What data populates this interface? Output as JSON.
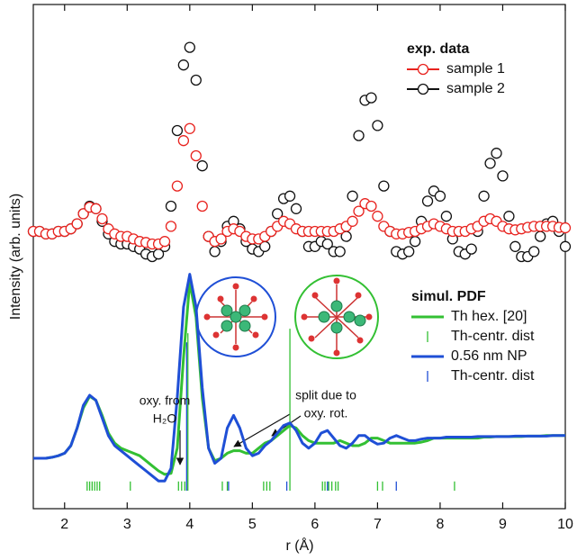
{
  "chart_data": {
    "type": "line",
    "xlabel": "r (Å)",
    "ylabel": "Intensity (arb. units)",
    "xlim": [
      1.5,
      10
    ],
    "xticks": [
      2,
      3,
      4,
      5,
      6,
      7,
      8,
      9,
      10
    ],
    "ylim": [
      0,
      100
    ],
    "x": [
      1.5,
      1.6,
      1.7,
      1.8,
      1.9,
      2.0,
      2.1,
      2.2,
      2.3,
      2.4,
      2.5,
      2.6,
      2.7,
      2.8,
      2.9,
      3.0,
      3.1,
      3.2,
      3.3,
      3.4,
      3.5,
      3.6,
      3.7,
      3.8,
      3.9,
      4.0,
      4.1,
      4.2,
      4.3,
      4.4,
      4.5,
      4.6,
      4.7,
      4.8,
      4.9,
      5.0,
      5.1,
      5.2,
      5.3,
      5.4,
      5.5,
      5.6,
      5.7,
      5.8,
      5.9,
      6.0,
      6.1,
      6.2,
      6.3,
      6.4,
      6.5,
      6.6,
      6.7,
      6.8,
      6.9,
      7.0,
      7.1,
      7.2,
      7.3,
      7.4,
      7.5,
      7.6,
      7.7,
      7.8,
      7.9,
      8.0,
      8.1,
      8.2,
      8.3,
      8.4,
      8.5,
      8.6,
      8.7,
      8.8,
      8.9,
      9.0,
      9.1,
      9.2,
      9.3,
      9.4,
      9.5,
      9.6,
      9.7,
      9.8,
      9.9,
      10.0
    ],
    "legends": [
      {
        "title": "exp. data",
        "series": [
          {
            "name": "sample 1",
            "color": "#e8231f",
            "style": "circles",
            "values": [
              55,
              55,
              54.5,
              54.5,
              55,
              55,
              55.5,
              56.5,
              58.5,
              59.8,
              59.5,
              57.5,
              55.5,
              54.5,
              54,
              54,
              53.5,
              53,
              52.8,
              52.5,
              52.5,
              53,
              56,
              64,
              73,
              75.4,
              70,
              60,
              54,
              53,
              53.5,
              55,
              55.5,
              55,
              54,
              53.5,
              53.5,
              54,
              55,
              56,
              57,
              56.5,
              55.5,
              55,
              55,
              55,
              55,
              55,
              55,
              55.5,
              56,
              57,
              59,
              60.5,
              60,
              58,
              56,
              55,
              54.5,
              54.5,
              54.8,
              55,
              55.5,
              56,
              56.5,
              56,
              55.5,
              55,
              55,
              55,
              55.5,
              56,
              57,
              57.5,
              57,
              56,
              55.5,
              55.3,
              55.5,
              55.8,
              56,
              56,
              56,
              56,
              55.8,
              55.7
            ]
          },
          {
            "name": "sample 2",
            "color": "#111111",
            "style": "circles",
            "values": [
              55,
              55,
              54.5,
              54.5,
              55,
              55,
              55.5,
              56.5,
              58.5,
              60,
              59.5,
              57,
              54.5,
              53,
              52.5,
              52.5,
              52,
              51.5,
              50.5,
              50,
              50.5,
              52,
              60,
              75,
              88,
              91.5,
              85,
              68,
              54,
              51,
              53,
              56,
              57,
              55.5,
              53,
              51.5,
              51,
              52,
              55,
              58.5,
              61.5,
              62,
              59.5,
              55,
              52,
              52,
              53,
              52.5,
              51,
              51,
              54,
              62,
              74,
              81,
              81.5,
              76,
              64,
              55,
              51,
              50.5,
              51,
              53,
              57,
              61,
              63,
              62,
              58,
              53.5,
              51,
              50.5,
              51.5,
              55,
              62,
              68.5,
              70.5,
              66,
              58,
              52,
              50,
              50,
              51,
              54,
              56.5,
              57,
              55,
              52
            ]
          }
        ]
      },
      {
        "title": "simul. PDF",
        "series": [
          {
            "name": "Th hex. [20]",
            "color": "#33c033",
            "style": "line",
            "values": [
              10,
              10,
              10,
              10.2,
              10.5,
              11,
              12.5,
              16,
              20,
              22.3,
              21.5,
              18.5,
              15,
              13,
              12,
              11.5,
              11,
              10.5,
              9.5,
              8.5,
              7.5,
              6.8,
              7,
              12,
              30,
              45,
              38,
              22,
              12,
              9.5,
              10,
              11,
              11.5,
              11.5,
              11,
              11,
              12,
              13,
              13.5,
              14.5,
              15.5,
              16.5,
              16,
              14.5,
              13.5,
              13,
              13,
              13,
              13,
              13.5,
              13,
              12.5,
              12.5,
              13,
              14,
              14,
              13.5,
              13,
              13,
              13,
              13,
              13,
              13.2,
              13.5,
              14,
              14,
              14,
              14,
              14,
              14,
              14,
              14,
              14.2,
              14.2,
              14.3,
              14.3,
              14.3,
              14.3,
              14.3,
              14.4,
              14.4,
              14.4,
              14.5,
              14.5,
              14.5,
              14.5
            ]
          },
          {
            "name": "Th-centr. dist",
            "color": "#33c033",
            "style": "sticks",
            "x": [
              2.36,
              2.4,
              2.44,
              2.48,
              2.52,
              2.56,
              3.05,
              3.82,
              3.87,
              3.92,
              3.97,
              4.52,
              4.6,
              5.18,
              5.23,
              5.28,
              5.6,
              6.12,
              6.16,
              6.22,
              6.27,
              6.33,
              6.37,
              7.0,
              7.08,
              8.23
            ],
            "values": [
              5.4,
              5.4,
              5.4,
              5.4,
              5.4,
              5.4,
              5.4,
              5.4,
              5.4,
              5.4,
              34.8,
              5.4,
              5.4,
              5.4,
              5.4,
              5.4,
              35.7,
              5.4,
              5.4,
              5.4,
              5.4,
              5.4,
              5.4,
              5.4,
              5.4,
              5.4
            ]
          },
          {
            "name": "0.56 nm NP",
            "color": "#1f4fd6",
            "style": "line",
            "values": [
              10,
              10,
              10,
              10.2,
              10.5,
              11,
              12.5,
              16,
              20.5,
              22.5,
              21.5,
              18,
              14.5,
              12.5,
              11.5,
              10.5,
              9.5,
              8.5,
              7.5,
              6.5,
              5.5,
              5.5,
              8,
              22,
              40,
              46.5,
              40,
              24,
              12,
              9,
              10,
              16,
              18.5,
              16,
              12,
              10.5,
              11,
              12.5,
              13.5,
              15,
              16.5,
              17,
              15.5,
              13,
              12,
              13,
              15,
              15.5,
              14,
              12.5,
              12,
              13,
              14.5,
              14.5,
              13.5,
              12.8,
              13,
              14,
              14.5,
              14,
              13.5,
              13.5,
              13.8,
              14,
              14,
              14,
              14.2,
              14.2,
              14.2,
              14.2,
              14.2,
              14.3,
              14.3,
              14.3,
              14.3,
              14.3,
              14.3,
              14.4,
              14.4,
              14.4,
              14.4,
              14.4,
              14.4,
              14.5,
              14.5,
              14.5
            ]
          },
          {
            "name": "Th-centr. dist",
            "color": "#1f4fd6",
            "style": "sticks",
            "x": [
              3.95,
              4.62,
              5.55,
              6.2,
              7.3
            ],
            "values": [
              33,
              5.4,
              5.4,
              5.4,
              5.4
            ]
          }
        ]
      }
    ],
    "annotations": [
      {
        "lines": [
          "oxy. from",
          "H₂O"
        ]
      },
      {
        "lines": [
          "split due to",
          "oxy. rot."
        ]
      }
    ]
  }
}
